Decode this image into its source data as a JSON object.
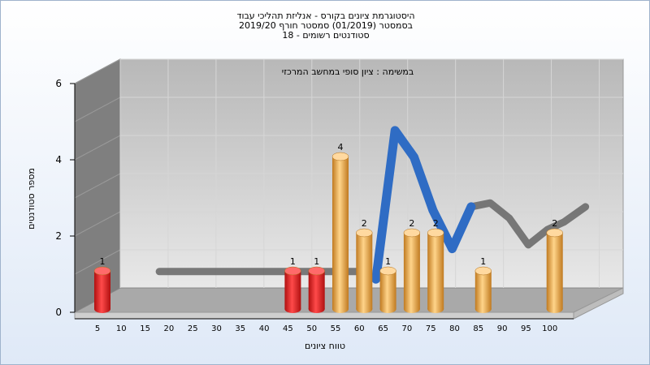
{
  "titles": {
    "line1": "היסטוגרמת ציונים בקורס - אנליזת תהליכי עבוד",
    "line2": "בסמסטר  (01/2019)  סמסטר חורף 2019/20",
    "line3": "סטודנטים רשומים - 18"
  },
  "chart_data": {
    "type": "bar",
    "subtitle": "במשימה : ציון סופי במחשב המרכזי",
    "xlabel": "טווח ציונים",
    "ylabel": "מספר סטודנטים",
    "ylim": [
      0,
      6
    ],
    "yticks": [
      0,
      2,
      4,
      6
    ],
    "categories": [
      "5",
      "10",
      "15",
      "20",
      "25",
      "30",
      "35",
      "40",
      "45",
      "50",
      "55",
      "60",
      "65",
      "70",
      "75",
      "80",
      "85",
      "90",
      "95",
      "100"
    ],
    "values": [
      1,
      0,
      0,
      0,
      0,
      0,
      0,
      0,
      1,
      1,
      4,
      2,
      1,
      2,
      2,
      0,
      1,
      0,
      0,
      2
    ],
    "fail_threshold": 55,
    "colors": {
      "fail": "#e03030",
      "pass": "#e8a94a",
      "curve_above": "#2f6cc4",
      "curve_below": "#6b6b6b"
    },
    "grid": true
  }
}
